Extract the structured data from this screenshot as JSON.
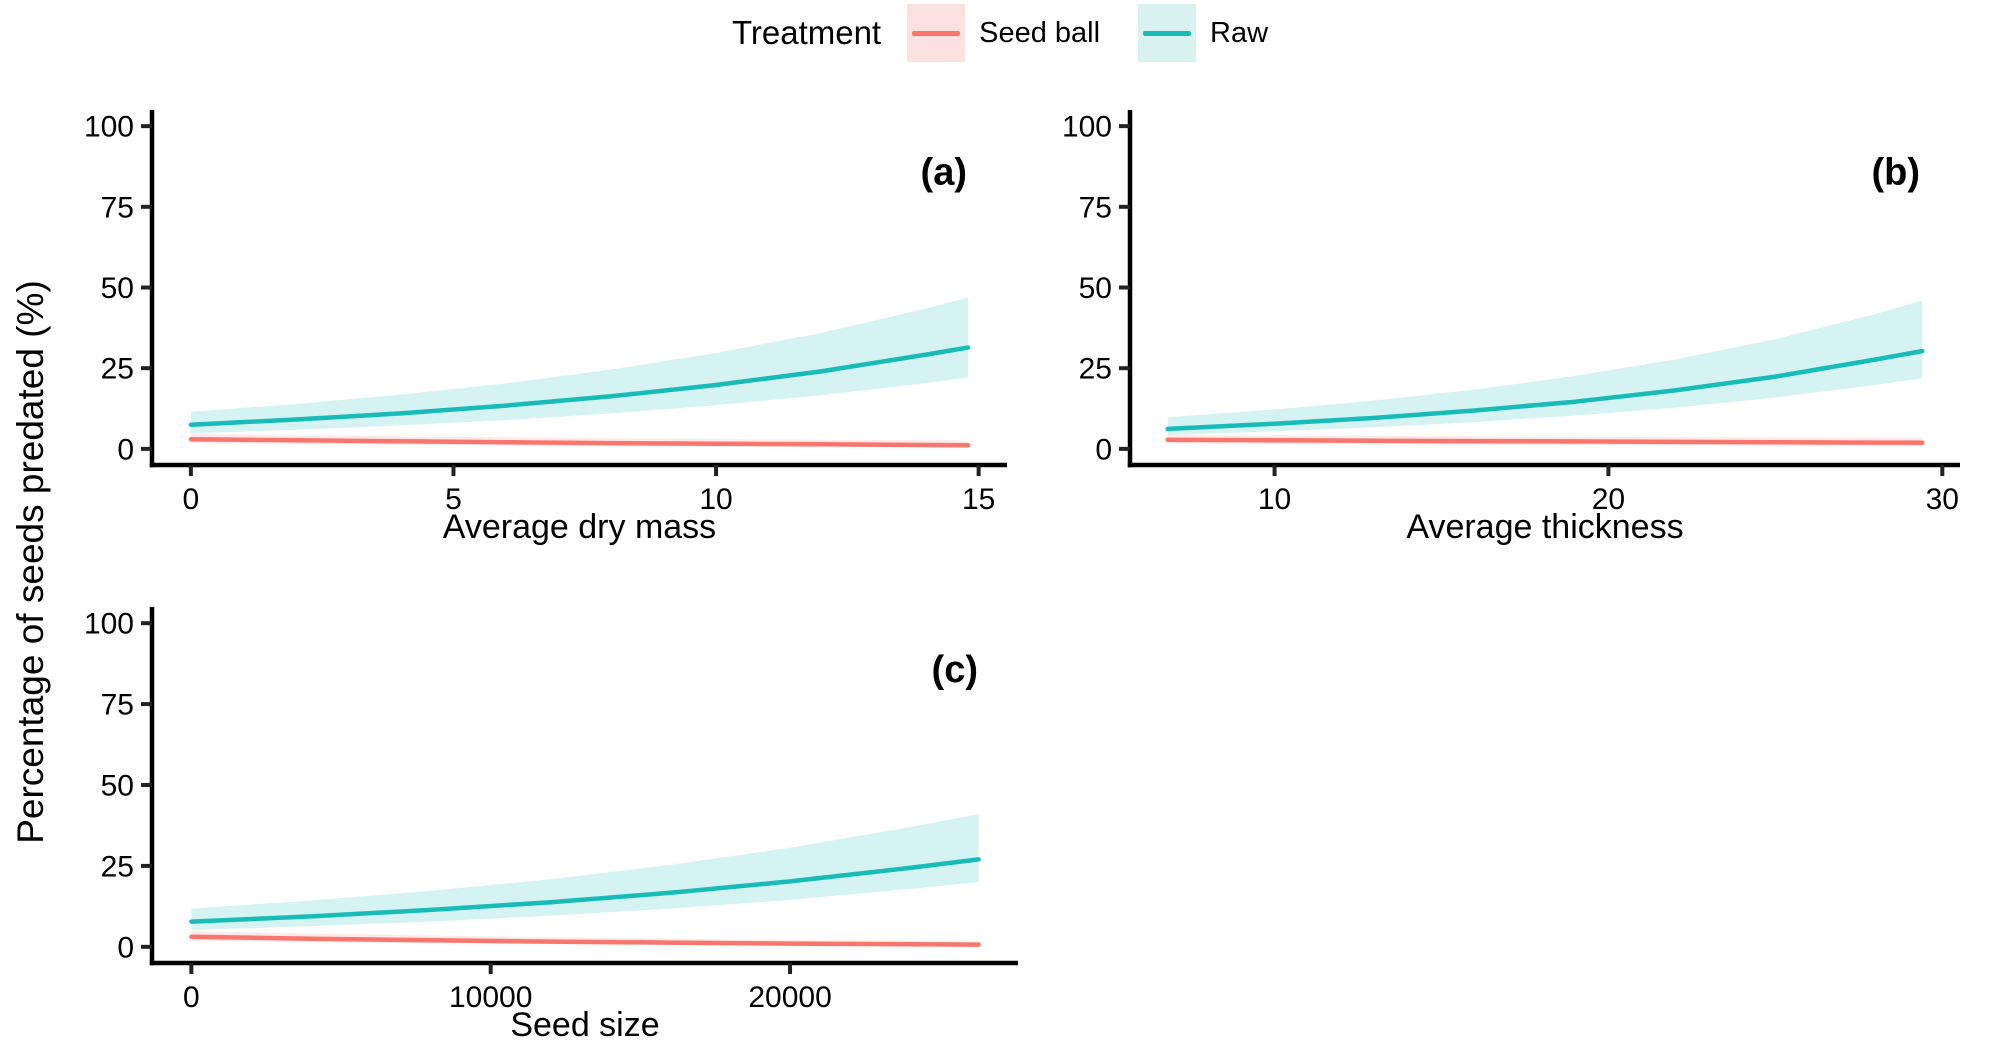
{
  "chart_data": {
    "type": "line",
    "title": "",
    "ylabel": "Percentage of seeds predated (%)",
    "ylim": [
      -5,
      105
    ],
    "yticks": [
      0,
      25,
      50,
      75,
      100
    ],
    "grid": false,
    "legend": {
      "title": "Treatment",
      "position": "top",
      "entries": [
        {
          "label": "Seed ball",
          "color": "#F8766D",
          "key_fill": "#FBE2E0"
        },
        {
          "label": "Raw",
          "color": "#17BCB8",
          "key_fill": "#D7F2EF"
        }
      ]
    },
    "panels": [
      {
        "letter": "(a)",
        "xlabel": "Average dry mass",
        "xlim": [
          -0.74,
          15.54
        ],
        "xticks": [
          0,
          5,
          10,
          15
        ],
        "series": [
          {
            "name": "Seed ball",
            "color": "#F8766D",
            "ribbon_fill": "rgba(248,118,109,0.15)",
            "x": [
              0,
              2,
              4,
              6,
              8,
              10,
              12,
              14,
              14.8
            ],
            "y": [
              3.0,
              2.65,
              2.35,
              2.05,
              1.8,
              1.6,
              1.4,
              1.2,
              1.15
            ],
            "lo": [
              1.85,
              1.55,
              1.3,
              1.1,
              0.9,
              0.75,
              0.6,
              0.5,
              0.45
            ],
            "hi": [
              4.7,
              4.3,
              3.95,
              3.6,
              3.3,
              3.05,
              2.85,
              2.7,
              2.6
            ]
          },
          {
            "name": "Raw",
            "color": "#17BCB8",
            "ribbon_fill": "rgba(23,188,184,0.18)",
            "x": [
              0,
              2,
              4,
              6,
              8,
              10,
              12,
              14,
              14.8
            ],
            "y": [
              7.5,
              9.1,
              11.0,
              13.4,
              16.3,
              19.8,
              24.0,
              29.2,
              31.4
            ],
            "lo": [
              4.8,
              5.9,
              7.3,
              8.9,
              11.0,
              13.5,
              16.6,
              20.4,
              22.1
            ],
            "hi": [
              11.5,
              13.9,
              16.8,
              20.3,
              24.6,
              29.7,
              35.9,
              43.5,
              46.9
            ]
          }
        ]
      },
      {
        "letter": "(b)",
        "xlabel": "Average thickness",
        "xlim": [
          5.67,
          30.53
        ],
        "xticks": [
          10,
          20,
          30
        ],
        "series": [
          {
            "name": "Seed ball",
            "color": "#F8766D",
            "ribbon_fill": "rgba(248,118,109,0.15)",
            "x": [
              6.8,
              10,
              13,
              16,
              19,
              22,
              25,
              28,
              29.4
            ],
            "y": [
              2.8,
              2.65,
              2.5,
              2.4,
              2.3,
              2.15,
              2.05,
              1.95,
              1.9
            ],
            "lo": [
              1.7,
              1.55,
              1.45,
              1.3,
              1.2,
              1.1,
              1.0,
              0.95,
              0.9
            ],
            "hi": [
              4.4,
              4.25,
              4.05,
              3.9,
              3.8,
              3.65,
              3.55,
              3.5,
              3.45
            ]
          },
          {
            "name": "Raw",
            "color": "#17BCB8",
            "ribbon_fill": "rgba(23,188,184,0.18)",
            "x": [
              6.8,
              10,
              13,
              16,
              19,
              22,
              25,
              28,
              29.4
            ],
            "y": [
              6.2,
              7.8,
              9.6,
              11.9,
              14.6,
              18.1,
              22.4,
              27.7,
              30.3
            ],
            "lo": [
              4.3,
              5.4,
              6.7,
              8.3,
              10.3,
              12.8,
              15.9,
              19.8,
              21.9
            ],
            "hi": [
              9.8,
              12.2,
              15.0,
              18.4,
              22.6,
              27.7,
              34.0,
              41.8,
              46.0
            ]
          }
        ]
      },
      {
        "letter": "(c)",
        "xlabel": "Seed size",
        "xlim": [
          -1315,
          27615
        ],
        "xticks": [
          0,
          10000,
          20000
        ],
        "series": [
          {
            "name": "Seed ball",
            "color": "#F8766D",
            "ribbon_fill": "rgba(248,118,109,0.15)",
            "x": [
              0,
              4000,
              8000,
              12000,
              16000,
              20000,
              24000,
              26300
            ],
            "y": [
              3.1,
              2.5,
              2.0,
              1.6,
              1.3,
              1.0,
              0.8,
              0.7
            ],
            "lo": [
              1.9,
              1.5,
              1.15,
              0.85,
              0.65,
              0.5,
              0.4,
              0.33
            ],
            "hi": [
              4.9,
              4.1,
              3.5,
              2.95,
              2.5,
              2.1,
              1.8,
              1.65
            ]
          },
          {
            "name": "Raw",
            "color": "#17BCB8",
            "ribbon_fill": "rgba(23,188,184,0.18)",
            "x": [
              0,
              4000,
              8000,
              12000,
              16000,
              20000,
              24000,
              26300
            ],
            "y": [
              7.8,
              9.4,
              11.4,
              13.8,
              16.7,
              20.2,
              24.4,
              27.0
            ],
            "lo": [
              5.2,
              6.4,
              7.8,
              9.6,
              11.8,
              14.5,
              17.9,
              20.0
            ],
            "hi": [
              11.8,
              14.3,
              17.3,
              20.9,
              25.3,
              30.6,
              37.0,
              41.0
            ]
          }
        ]
      }
    ],
    "axis_color": "#000000",
    "tick_label_color": "#000000"
  }
}
